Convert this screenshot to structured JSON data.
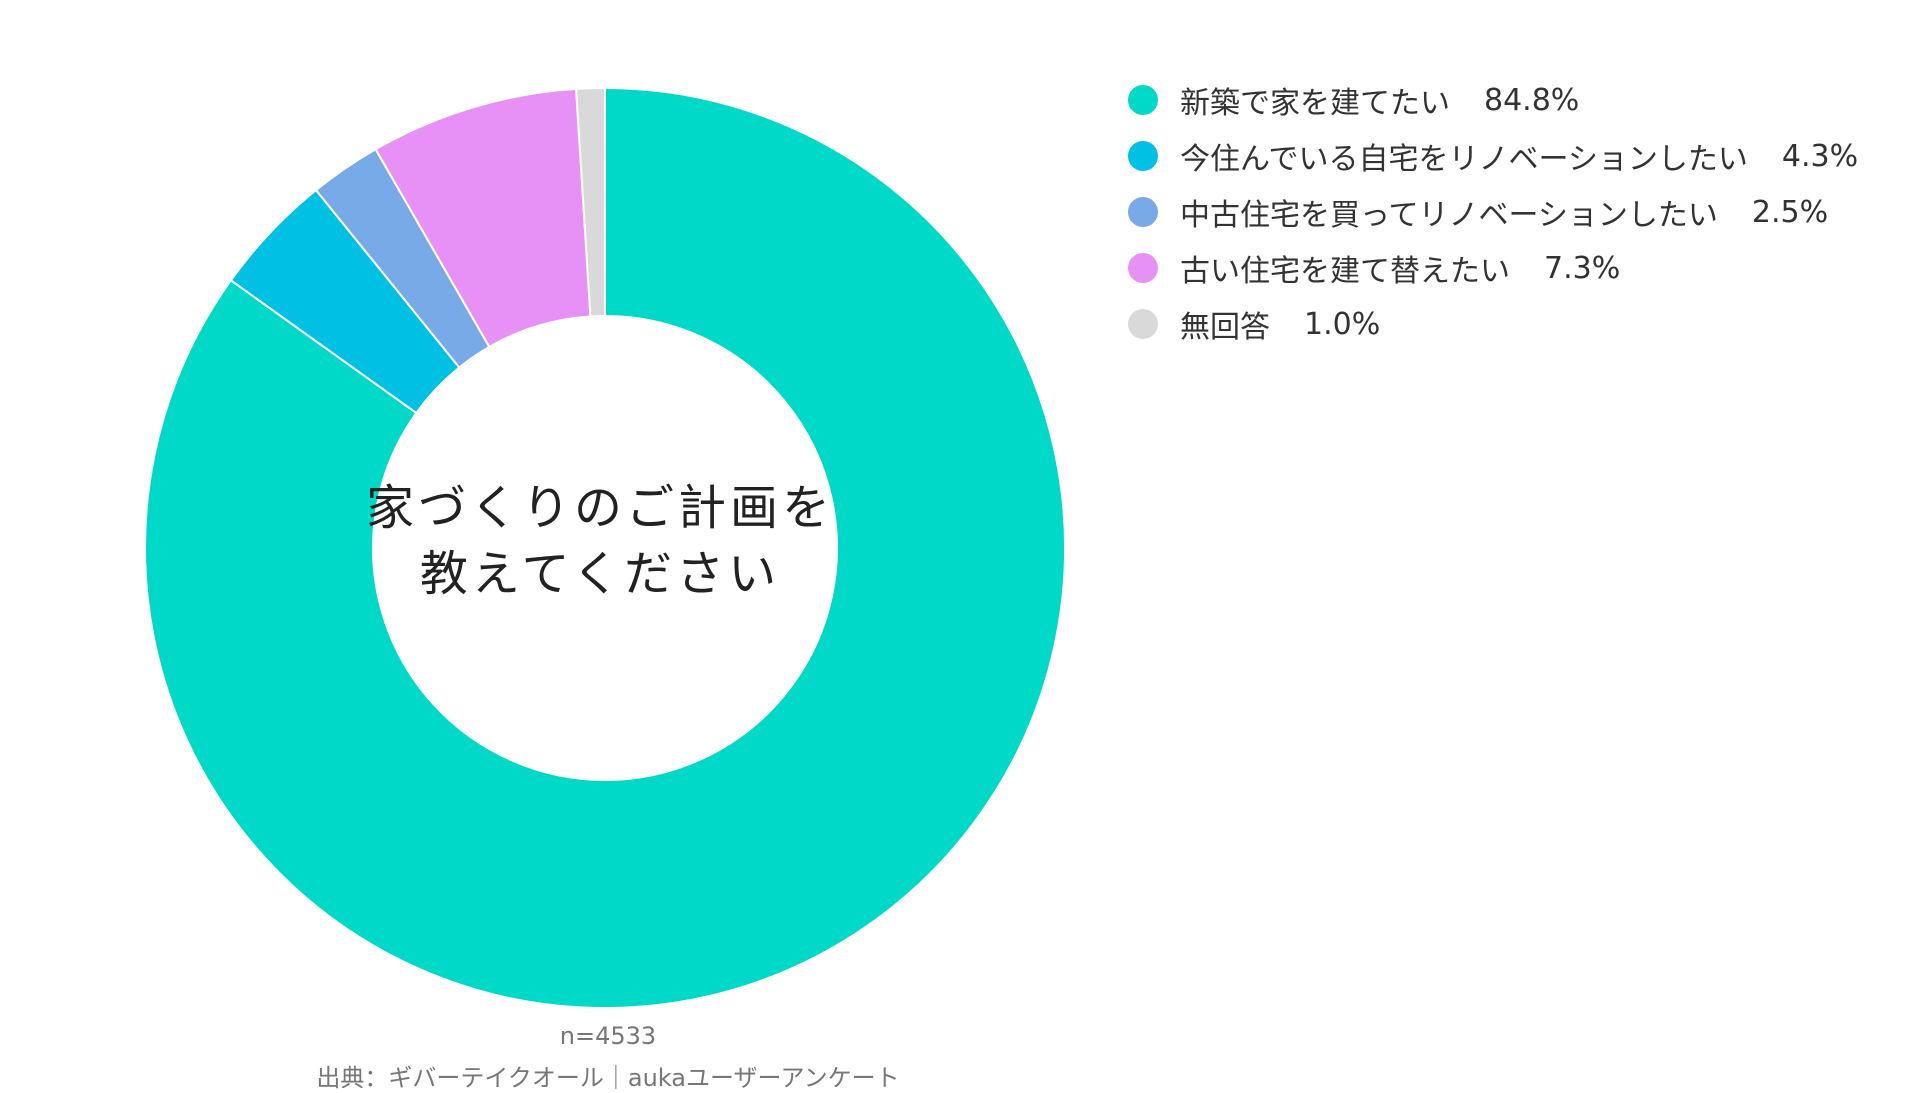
{
  "chart_data": {
    "type": "pie",
    "center_title_lines": [
      "家づくりのご計画を",
      "教えてください"
    ],
    "slices": [
      {
        "label": "新築で家を建てたい",
        "value": 84.8,
        "value_label": "84.8%",
        "color": "#00D9C8"
      },
      {
        "label": "今住んでいる自宅をリノベーションしたい",
        "value": 4.3,
        "value_label": "4.3%",
        "color": "#00C0E3"
      },
      {
        "label": "中古住宅を買ってリノベーションしたい",
        "value": 2.5,
        "value_label": "2.5%",
        "color": "#79AAE8"
      },
      {
        "label": "古い住宅を建て替えたい",
        "value": 7.3,
        "value_label": "7.3%",
        "color": "#E791F7"
      },
      {
        "label": "無回答",
        "value": 1.0,
        "value_label": "1.0%",
        "color": "#D9D9D9"
      }
    ],
    "legend_position": "right"
  },
  "footer": {
    "sample_size": "n=4533",
    "source": "出典：ギバーテイクオール｜aukaユーザーアンケート"
  }
}
